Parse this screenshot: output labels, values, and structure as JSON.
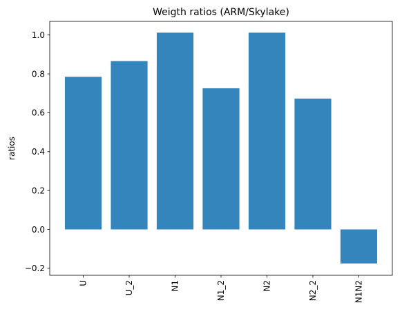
{
  "chart_data": {
    "type": "bar",
    "title": "Weigth ratios (ARM/Skylake)",
    "xlabel": "",
    "ylabel": "ratios",
    "categories": [
      "U",
      "U_2",
      "N1",
      "N1_2",
      "N2",
      "N2_2",
      "N1N2"
    ],
    "values": [
      0.785,
      0.866,
      1.012,
      0.726,
      1.012,
      0.673,
      -0.175
    ],
    "ylim": [
      -0.236,
      1.07
    ],
    "yticks": [
      -0.2,
      0.0,
      0.2,
      0.4,
      0.6,
      0.8,
      1.0
    ],
    "ytick_labels": [
      "−0.2",
      "0.0",
      "0.2",
      "0.4",
      "0.6",
      "0.8",
      "1.0"
    ],
    "bar_color": "#3485bc",
    "grid": false,
    "legend": "none"
  }
}
